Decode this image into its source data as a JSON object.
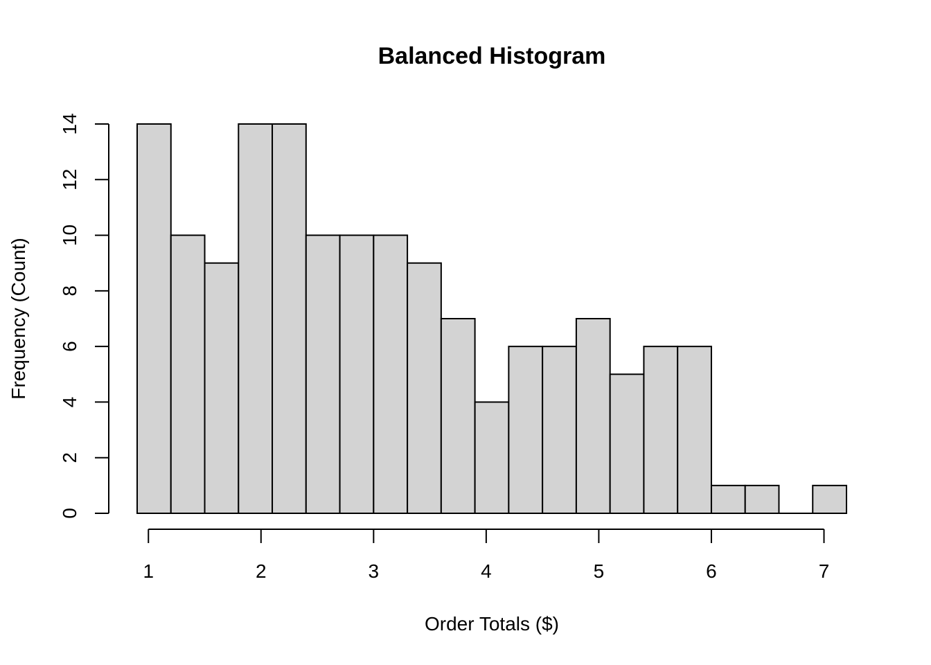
{
  "chart_data": {
    "type": "bar",
    "title": "Balanced Histogram",
    "xlabel": "Order Totals ($)",
    "ylabel": "Frequency (Count)",
    "bin_edges": [
      0.9,
      1.2,
      1.5,
      1.8,
      2.1,
      2.4,
      2.7,
      3.0,
      3.3,
      3.6,
      3.9,
      4.2,
      4.5,
      4.8,
      5.1,
      5.4,
      5.7,
      6.0,
      6.3,
      6.6,
      6.9,
      7.2
    ],
    "counts": [
      14,
      10,
      9,
      14,
      14,
      10,
      10,
      10,
      9,
      7,
      4,
      6,
      6,
      7,
      5,
      6,
      6,
      1,
      1,
      0,
      1
    ],
    "xlim": [
      0.9,
      7.2
    ],
    "ylim": [
      0,
      14
    ],
    "xticks": [
      1,
      2,
      3,
      4,
      5,
      6,
      7
    ],
    "yticks": [
      0,
      2,
      4,
      6,
      8,
      10,
      12,
      14
    ],
    "grid": false,
    "legend": "none",
    "bar_color": "#d3d3d3",
    "edge_color": "#000000"
  }
}
